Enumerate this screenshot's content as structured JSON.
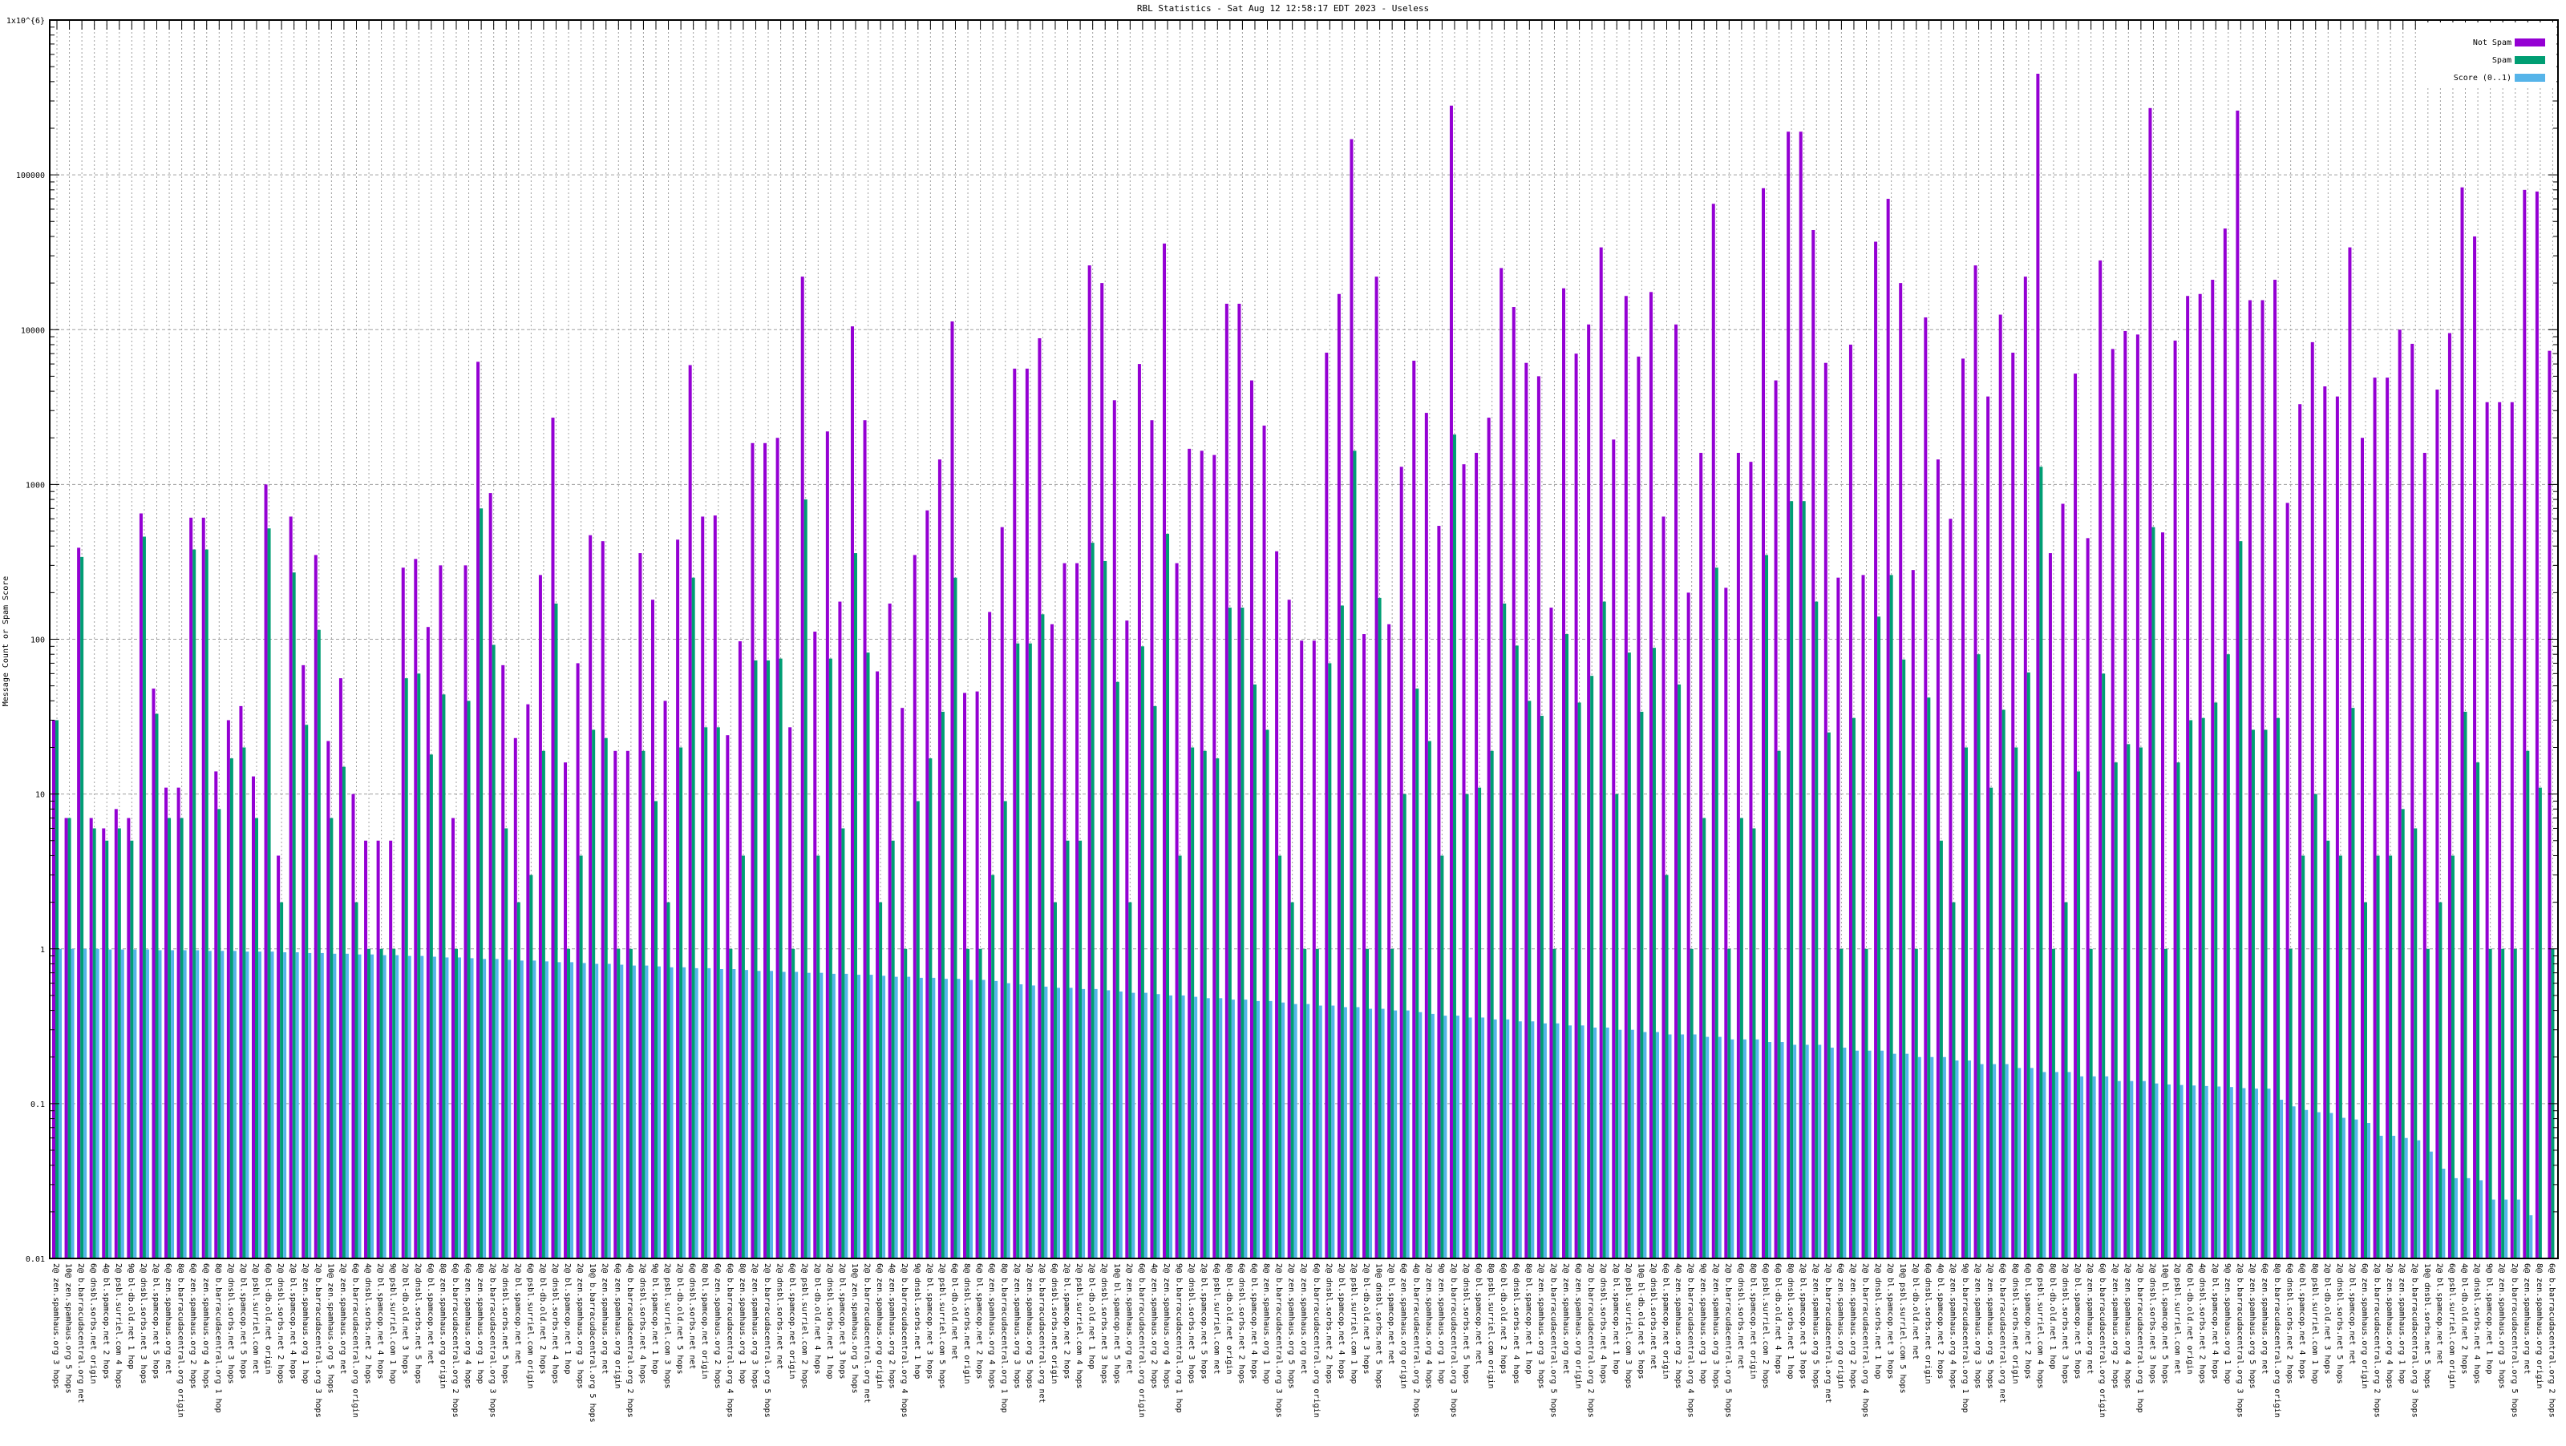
{
  "chart_data": {
    "type": "bar",
    "title": "RBL Statistics - Sat Aug 12 12:58:17 EDT 2023 - Useless",
    "xlabel": "",
    "ylabel": "Message Count or Spam Score",
    "yscale": "log",
    "ylim": [
      0.01,
      1000000
    ],
    "yticks": [
      {
        "value": 1000000,
        "label": "1x10^{6}"
      },
      {
        "value": 100000,
        "label": "100000"
      },
      {
        "value": 10000,
        "label": "10000"
      },
      {
        "value": 1000,
        "label": "1000"
      },
      {
        "value": 100,
        "label": "100"
      },
      {
        "value": 10,
        "label": "10"
      },
      {
        "value": 1,
        "label": "1"
      },
      {
        "value": 0.1,
        "label": "0.1"
      },
      {
        "value": 0.01,
        "label": "0.01"
      }
    ],
    "grid": true,
    "legend_position": "top-right",
    "colors": {
      "not_spam": "#9400d3",
      "spam": "#009e73",
      "score": "#56b4e9"
    },
    "series": [
      {
        "name": "Not Spam",
        "key": "not_spam",
        "values": [
          30,
          7,
          390,
          7,
          6,
          8,
          7,
          650,
          48,
          11,
          11,
          610,
          610,
          14,
          30,
          37,
          13,
          1000,
          4,
          620,
          68,
          350,
          22,
          56,
          10,
          5,
          5,
          5,
          290,
          330,
          120,
          300,
          7,
          300,
          6200,
          880,
          68,
          23,
          38,
          260,
          2700,
          16,
          70,
          470,
          430,
          19,
          19,
          360,
          180,
          40,
          440,
          5900,
          620,
          630,
          24,
          97,
          1850,
          1850,
          2000,
          27,
          22000,
          112,
          2200,
          175,
          10500,
          2600,
          62,
          170,
          36,
          350,
          680,
          1450,
          11300,
          45,
          46,
          150,
          530,
          5600,
          5600,
          8800,
          125,
          310,
          310,
          26000,
          20000,
          3500,
          132,
          6000,
          2600,
          36000,
          310,
          1700,
          1650,
          1550,
          14700,
          14700,
          4700,
          2400,
          370,
          180,
          98,
          98,
          7100,
          17000,
          170000,
          108,
          22000,
          125,
          1300,
          6300,
          2900,
          540,
          280000,
          1350,
          1600,
          2700,
          25000,
          14000,
          6100,
          5000,
          160,
          18500,
          7000,
          10800,
          34000,
          1950,
          16500,
          6700,
          17500,
          620,
          10800,
          200,
          1600,
          65000,
          215,
          1600,
          1400,
          82000,
          4700,
          190000,
          190000,
          44000,
          6100,
          250,
          8000,
          260,
          37000,
          70000,
          20000,
          280,
          12000,
          1450,
          600,
          6500,
          26000,
          3700,
          12500,
          7100,
          22000,
          450000,
          360,
          750,
          5200,
          450,
          28000,
          7500,
          9800,
          9300,
          270000,
          490,
          8500,
          16500,
          17000,
          21000,
          45000,
          260000,
          15500,
          15500,
          21000,
          760,
          3300,
          8300,
          4300,
          3700,
          34000,
          2000,
          4900,
          4900,
          10000,
          8100,
          1600,
          4100,
          9500,
          83000,
          40000,
          3400,
          3400,
          3400,
          80000,
          78000,
          7300
        ]
      },
      {
        "name": "Spam",
        "key": "spam",
        "values": [
          30,
          7,
          340,
          6,
          5,
          6,
          5,
          460,
          33,
          7,
          7,
          380,
          380,
          8,
          17,
          20,
          7,
          520,
          2,
          270,
          28,
          115,
          7,
          15,
          2,
          1,
          1,
          1,
          56,
          60,
          18,
          44,
          1,
          40,
          700,
          92,
          6,
          2,
          3,
          19,
          170,
          1,
          4,
          26,
          23,
          1,
          1,
          19,
          9,
          2,
          20,
          250,
          27,
          27,
          1,
          4,
          73,
          73,
          75,
          1,
          800,
          4,
          75,
          6,
          360,
          82,
          2,
          5,
          1,
          9,
          17,
          34,
          250,
          1,
          1,
          3,
          9,
          94,
          94,
          145,
          2,
          5,
          5,
          420,
          320,
          53,
          2,
          90,
          37,
          480,
          4,
          20,
          19,
          17,
          160,
          160,
          51,
          26,
          4,
          2,
          1,
          1,
          70,
          165,
          1650,
          1,
          185,
          1,
          10,
          48,
          22,
          4,
          2100,
          10,
          11,
          19,
          170,
          91,
          40,
          32,
          1,
          108,
          39,
          58,
          175,
          10,
          82,
          34,
          88,
          3,
          51,
          1,
          7,
          290,
          1,
          7,
          6,
          350,
          19,
          780,
          780,
          175,
          25,
          1,
          31,
          1,
          140,
          260,
          74,
          1,
          42,
          5,
          2,
          20,
          80,
          11,
          35,
          20,
          61,
          1300,
          1,
          2,
          14,
          1,
          60,
          16,
          21,
          20,
          530,
          1,
          16,
          30,
          31,
          39,
          80,
          430,
          26,
          26,
          31,
          1,
          4,
          10,
          5,
          4,
          36,
          2,
          4,
          4,
          8,
          6,
          1,
          2,
          4,
          34,
          16,
          1,
          1,
          1,
          19,
          11,
          1
        ]
      },
      {
        "name": "Score (0..1)",
        "key": "score",
        "values": [
          1.0,
          1.0,
          1.0,
          1.0,
          0.99,
          0.99,
          0.99,
          0.99,
          0.98,
          0.98,
          0.98,
          0.98,
          0.97,
          0.97,
          0.97,
          0.96,
          0.96,
          0.96,
          0.95,
          0.95,
          0.94,
          0.94,
          0.93,
          0.93,
          0.92,
          0.92,
          0.91,
          0.91,
          0.9,
          0.9,
          0.89,
          0.88,
          0.88,
          0.87,
          0.86,
          0.86,
          0.85,
          0.84,
          0.84,
          0.83,
          0.82,
          0.82,
          0.81,
          0.8,
          0.8,
          0.79,
          0.78,
          0.78,
          0.77,
          0.76,
          0.76,
          0.75,
          0.75,
          0.74,
          0.74,
          0.73,
          0.72,
          0.72,
          0.71,
          0.71,
          0.7,
          0.7,
          0.69,
          0.69,
          0.68,
          0.68,
          0.67,
          0.66,
          0.66,
          0.65,
          0.65,
          0.64,
          0.64,
          0.63,
          0.63,
          0.62,
          0.6,
          0.59,
          0.58,
          0.57,
          0.56,
          0.56,
          0.55,
          0.55,
          0.54,
          0.53,
          0.52,
          0.52,
          0.51,
          0.5,
          0.5,
          0.49,
          0.48,
          0.48,
          0.47,
          0.47,
          0.46,
          0.46,
          0.45,
          0.44,
          0.44,
          0.43,
          0.43,
          0.42,
          0.42,
          0.41,
          0.41,
          0.4,
          0.4,
          0.39,
          0.38,
          0.37,
          0.37,
          0.36,
          0.36,
          0.35,
          0.35,
          0.34,
          0.34,
          0.33,
          0.33,
          0.32,
          0.32,
          0.31,
          0.31,
          0.3,
          0.3,
          0.29,
          0.29,
          0.28,
          0.28,
          0.28,
          0.27,
          0.27,
          0.26,
          0.26,
          0.26,
          0.25,
          0.25,
          0.24,
          0.24,
          0.24,
          0.23,
          0.23,
          0.22,
          0.22,
          0.22,
          0.21,
          0.21,
          0.2,
          0.2,
          0.2,
          0.19,
          0.19,
          0.18,
          0.18,
          0.18,
          0.17,
          0.17,
          0.16,
          0.16,
          0.16,
          0.15,
          0.15,
          0.15,
          0.14,
          0.14,
          0.14,
          0.135,
          0.133,
          0.132,
          0.131,
          0.13,
          0.129,
          0.128,
          0.126,
          0.125,
          0.125,
          0.106,
          0.096,
          0.091,
          0.088,
          0.087,
          0.081,
          0.079,
          0.075,
          0.062,
          0.062,
          0.06,
          0.058,
          0.049,
          0.038,
          0.033,
          0.033,
          0.032,
          0.024,
          0.024,
          0.024,
          0.019,
          0,
          0
        ]
      }
    ],
    "label_prefixes": [
      "2@",
      "10@",
      "2@",
      "6@",
      "4@",
      "2@",
      "9@",
      "2@",
      "2@",
      "6@",
      "8@",
      "6@",
      "6@",
      "8@",
      "2@",
      "2@",
      "2@",
      "6@",
      "2@",
      "2@",
      "2@"
    ],
    "label_lists": [
      "zen.spamhaus.org",
      "zen.spamhaus.org",
      "b.barracudacentral.org",
      "dnsbl.sorbs.net",
      "bl.spamcop.net",
      "psbl.surriel.com",
      "bl-db.old.net",
      "dnsbl.sorbs.net",
      "bl.spamcop.net",
      "zen.spamhaus.org",
      "b.barracudacentral.org"
    ],
    "label_hops": [
      "3 hops",
      "5 hops",
      "net",
      "origin",
      "2 hops",
      "4 hops",
      "1 hop"
    ]
  }
}
